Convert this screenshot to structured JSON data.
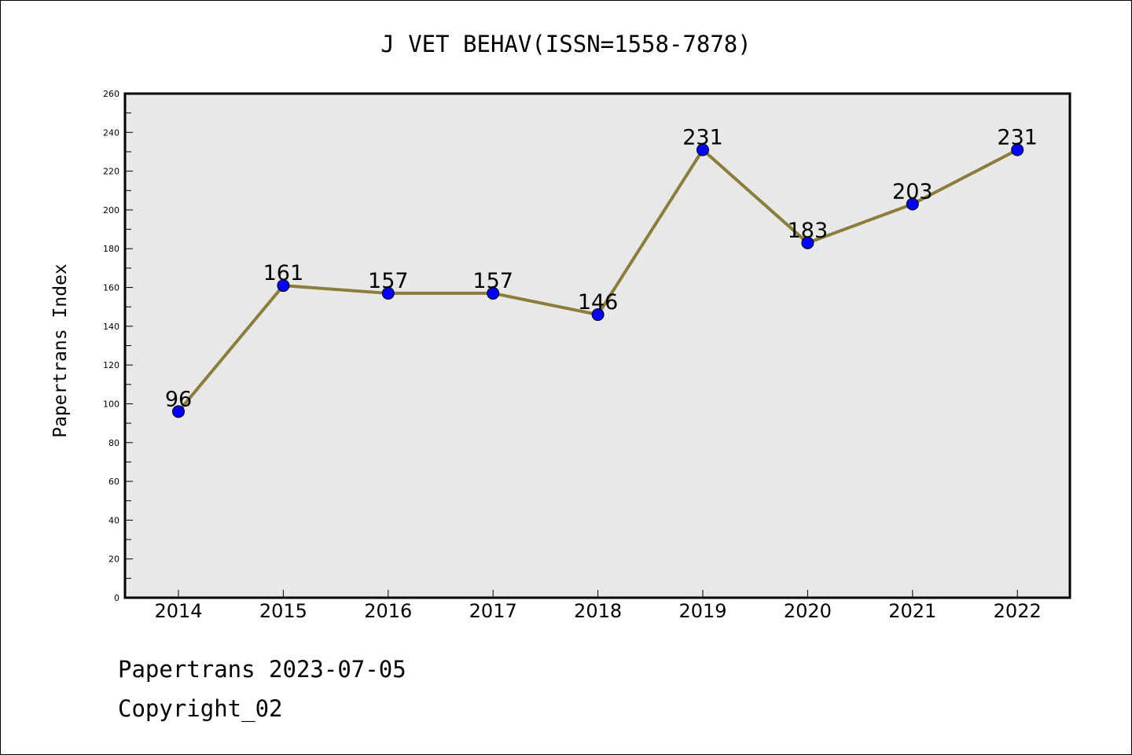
{
  "chart_data": {
    "type": "line",
    "title": "J VET BEHAV(ISSN=1558-7878)",
    "xlabel": "",
    "ylabel": "Papertrans Index",
    "categories": [
      "2014",
      "2015",
      "2016",
      "2017",
      "2018",
      "2019",
      "2020",
      "2021",
      "2022"
    ],
    "series": [
      {
        "values": [
          96,
          161,
          157,
          157,
          146,
          231,
          183,
          203,
          231
        ]
      }
    ],
    "data_labels": [
      "96",
      "161",
      "157",
      "157",
      "146",
      "231",
      "183",
      "203",
      "231"
    ],
    "ylim": [
      0,
      260
    ],
    "yticks": [
      "0",
      "20",
      "40",
      "60",
      "80",
      "100",
      "120",
      "140",
      "160",
      "180",
      "200",
      "220",
      "240",
      "260"
    ],
    "grid": false,
    "legend": "none",
    "colors": {
      "line": "#8b7d3a",
      "marker": "#0000ff",
      "plot_background": "#e8e8e8"
    }
  },
  "footer": {
    "source": "Papertrans 2023-07-05",
    "copyright": "Copyright_02"
  }
}
